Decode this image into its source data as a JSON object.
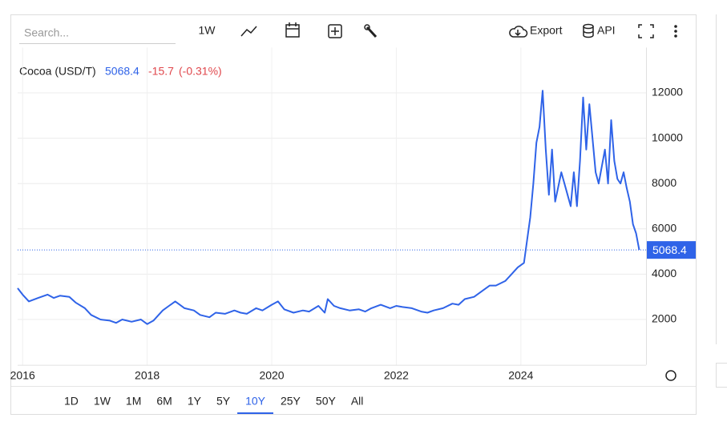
{
  "toolbar": {
    "search_placeholder": "Search...",
    "interval": "1W",
    "export": "Export",
    "api": "API"
  },
  "ranges": {
    "items": [
      "1D",
      "1W",
      "1M",
      "6M",
      "1Y",
      "5Y",
      "10Y",
      "25Y",
      "50Y",
      "All"
    ],
    "active": 6
  },
  "chart_data": {
    "type": "line",
    "series": [
      {
        "name": "Cocoa (USD/T)",
        "color": "#2f63e8",
        "x": [
          2015.92,
          2016.0,
          2016.1,
          2016.25,
          2016.4,
          2016.5,
          2016.6,
          2016.75,
          2016.85,
          2017.0,
          2017.1,
          2017.25,
          2017.4,
          2017.5,
          2017.6,
          2017.75,
          2017.9,
          2018.0,
          2018.1,
          2018.25,
          2018.35,
          2018.45,
          2018.6,
          2018.75,
          2018.85,
          2019.0,
          2019.1,
          2019.25,
          2019.4,
          2019.5,
          2019.6,
          2019.75,
          2019.85,
          2020.0,
          2020.1,
          2020.2,
          2020.35,
          2020.5,
          2020.6,
          2020.75,
          2020.85,
          2020.9,
          2021.0,
          2021.1,
          2021.25,
          2021.4,
          2021.5,
          2021.6,
          2021.75,
          2021.9,
          2022.0,
          2022.1,
          2022.25,
          2022.4,
          2022.5,
          2022.6,
          2022.75,
          2022.9,
          2023.0,
          2023.1,
          2023.25,
          2023.4,
          2023.5,
          2023.6,
          2023.75,
          2023.85,
          2023.95,
          2024.05,
          2024.1,
          2024.15,
          2024.2,
          2024.25,
          2024.3,
          2024.35,
          2024.4,
          2024.45,
          2024.5,
          2024.55,
          2024.65,
          2024.75,
          2024.8,
          2024.85,
          2024.9,
          2024.95,
          2025.0,
          2025.05,
          2025.1,
          2025.15,
          2025.2,
          2025.25,
          2025.35,
          2025.4,
          2025.45,
          2025.5,
          2025.55,
          2025.6,
          2025.65,
          2025.7,
          2025.75,
          2025.8,
          2025.85,
          2025.9
        ],
        "values": [
          3380,
          3100,
          2800,
          2950,
          3100,
          2950,
          3050,
          3000,
          2750,
          2500,
          2200,
          2000,
          1950,
          1850,
          2000,
          1900,
          2000,
          1800,
          1950,
          2400,
          2600,
          2800,
          2500,
          2400,
          2200,
          2100,
          2300,
          2250,
          2400,
          2300,
          2250,
          2500,
          2400,
          2650,
          2800,
          2450,
          2300,
          2400,
          2350,
          2600,
          2300,
          2900,
          2600,
          2500,
          2400,
          2450,
          2350,
          2500,
          2650,
          2500,
          2600,
          2550,
          2500,
          2350,
          2300,
          2400,
          2500,
          2700,
          2650,
          2900,
          3000,
          3300,
          3500,
          3500,
          3700,
          4000,
          4300,
          4500,
          5500,
          6500,
          8000,
          9800,
          10500,
          12100,
          9500,
          7500,
          9500,
          7200,
          8500,
          7500,
          7000,
          8500,
          7000,
          9000,
          11800,
          9500,
          11500,
          10000,
          8500,
          8000,
          9500,
          8000,
          10800,
          9000,
          8200,
          8000,
          8500,
          7800,
          7200,
          6200,
          5800,
          5068.4
        ]
      }
    ],
    "last": 5068.4,
    "change": -15.7,
    "change_percent": {
      "value": -0.31,
      "label": "(-0.31%)"
    },
    "change_color": "#e0474c",
    "xlim": [
      2015.92,
      2026.01
    ],
    "xticks": [
      2016,
      2018,
      2020,
      2022,
      2024
    ],
    "ylim": [
      0,
      14000
    ],
    "yticks": [
      2000,
      4000,
      6000,
      8000,
      10000,
      12000
    ],
    "grid": true
  }
}
